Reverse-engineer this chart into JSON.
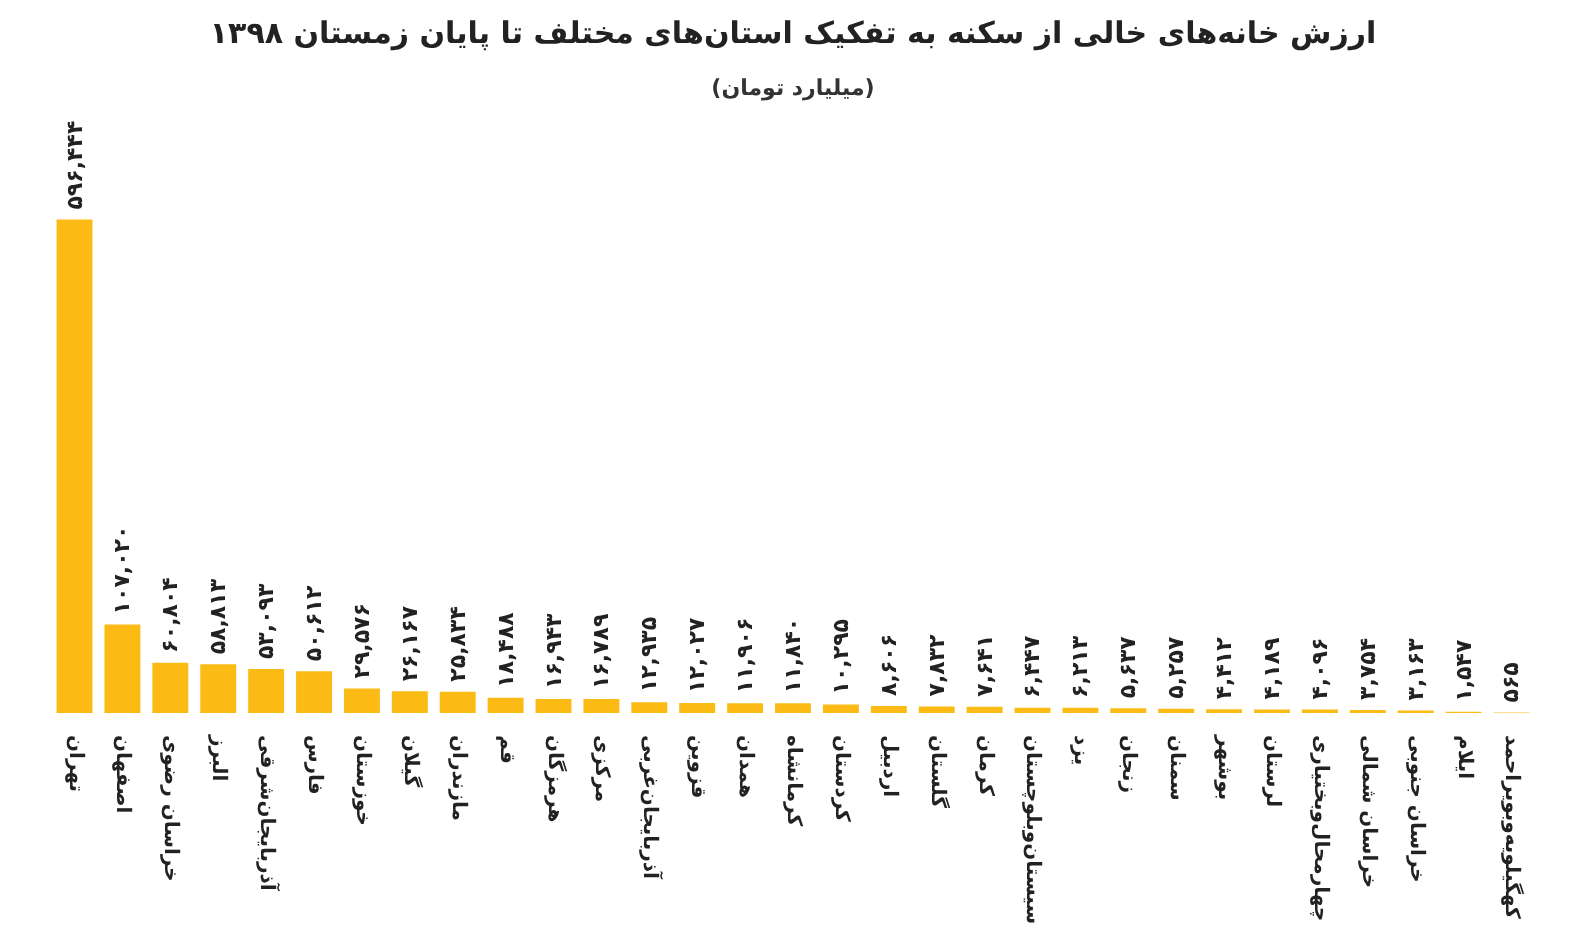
{
  "chart_data": {
    "type": "bar",
    "title": "ارزش خانه‌های خالی از سکنه به تفکیک استان‌های مختلف تا پایان زمستان ۱۳۹۸",
    "subtitle": "(میلیارد تومان)",
    "categories": [
      "تهران",
      "اصفهان",
      "خراسان رضوی",
      "البرز",
      "آذربایجان‌شرقی",
      "فارس",
      "خوزستان",
      "گیلان",
      "مازندران",
      "قم",
      "هرمزگان",
      "مرکزی",
      "آذربایجان‌غربی",
      "قزوین",
      "همدان",
      "کرمانشاه",
      "کردستان",
      "اردبیل",
      "گلستان",
      "کرمان",
      "سیستان‌وبلوچستان",
      "یزد",
      "زنجان",
      "سمنان",
      "بوشهر",
      "لرستان",
      "چهارمحال‌وبختیاری",
      "خراسان شمالی",
      "خراسان جنوبی",
      "ایلام",
      "کهگیلویه‌وبویراحمد"
    ],
    "values": [
      596444,
      107020,
      60804,
      58813,
      53093,
      50612,
      29576,
      26167,
      25834,
      18488,
      16943,
      16789,
      12935,
      12027,
      11906,
      11840,
      10295,
      8606,
      7832,
      7641,
      6447,
      6213,
      5637,
      5257,
      4412,
      4189,
      4096,
      3754,
      3163,
      1547,
      565
    ],
    "value_labels": [
      "۵۹۶,۴۴۴",
      "۱۰۷,۰۲۰",
      "۶۰,۸۰۴",
      "۵۸,۸۱۳",
      "۵۳,۰۹۳",
      "۵۰,۶۱۲",
      "۲۹,۵۷۶",
      "۲۶,۱۶۷",
      "۲۵,۸۳۴",
      "۱۸,۴۸۸",
      "۱۶,۹۴۳",
      "۱۶,۷۸۹",
      "۱۲,۹۳۵",
      "۱۲,۰۲۷",
      "۱۱,۹۰۶",
      "۱۱,۸۴۰",
      "۱۰,۲۹۵",
      "۸,۶۰۶",
      "۷,۸۳۲",
      "۷,۶۴۱",
      "۶,۴۴۷",
      "۶,۲۱۳",
      "۵,۶۳۷",
      "۵,۲۵۷",
      "۴,۴۱۲",
      "۴,۱۸۹",
      "۴,۰۹۶",
      "۳,۷۵۴",
      "۳,۱۶۳",
      "۱,۵۴۷",
      "۵۶۵"
    ],
    "color": "#fbbb14",
    "grid": false
  }
}
